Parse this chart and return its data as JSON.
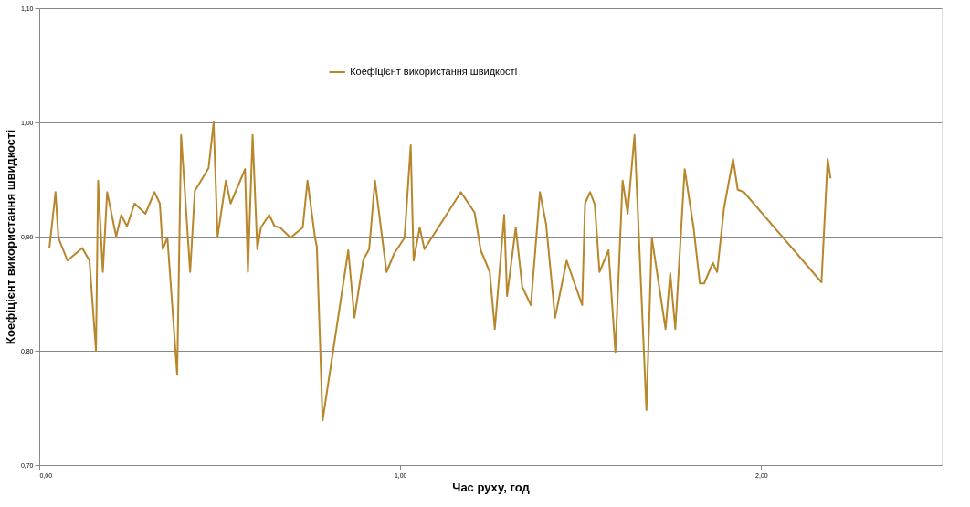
{
  "chart_data": {
    "type": "line",
    "xlabel": "Час руху, год",
    "ylabel": "Коефіцієнт використання швидкості",
    "xlim": [
      0,
      2.5
    ],
    "xticks": [
      {
        "value": 0,
        "label": "0,00"
      },
      {
        "value": 1,
        "label": "1,00"
      },
      {
        "value": 2,
        "label": "2,00"
      }
    ],
    "ylim": [
      0.7,
      1.1
    ],
    "yticks": [
      {
        "value": 0.7,
        "label": "0,70"
      },
      {
        "value": 0.8,
        "label": "0,80"
      },
      {
        "value": 0.9,
        "label": "0,90"
      },
      {
        "value": 1.0,
        "label": "1,00"
      },
      {
        "value": 1.1,
        "label": "1,10"
      }
    ],
    "grid": "y",
    "legend": "top",
    "marker": "none",
    "line_style": "solid",
    "x": [
      0.028,
      0.045,
      0.053,
      0.078,
      0.119,
      0.139,
      0.157,
      0.163,
      0.176,
      0.188,
      0.213,
      0.227,
      0.243,
      0.264,
      0.294,
      0.319,
      0.334,
      0.342,
      0.355,
      0.382,
      0.393,
      0.418,
      0.431,
      0.469,
      0.483,
      0.494,
      0.517,
      0.53,
      0.57,
      0.578,
      0.591,
      0.604,
      0.614,
      0.637,
      0.652,
      0.667,
      0.696,
      0.73,
      0.743,
      0.764,
      0.769,
      0.785,
      0.856,
      0.873,
      0.898,
      0.914,
      0.93,
      0.962,
      0.983,
      1.012,
      1.029,
      1.037,
      1.054,
      1.067,
      1.168,
      1.206,
      1.223,
      1.248,
      1.262,
      1.288,
      1.296,
      1.32,
      1.338,
      1.362,
      1.387,
      1.404,
      1.429,
      1.461,
      1.504,
      1.512,
      1.526,
      1.539,
      1.552,
      1.577,
      1.596,
      1.616,
      1.63,
      1.649,
      1.682,
      1.697,
      1.735,
      1.748,
      1.762,
      1.788,
      1.813,
      1.83,
      1.842,
      1.866,
      1.878,
      1.897,
      1.922,
      1.935,
      1.952,
      2.167,
      2.184,
      2.192
    ],
    "series": [
      {
        "name": "Коефіцієнт використання швидкості",
        "color": "#b8862b",
        "values": [
          0.89,
          0.939,
          0.899,
          0.879,
          0.89,
          0.879,
          0.8,
          0.949,
          0.869,
          0.939,
          0.9,
          0.919,
          0.909,
          0.929,
          0.92,
          0.939,
          0.929,
          0.889,
          0.899,
          0.779,
          0.989,
          0.869,
          0.94,
          0.96,
          1.0,
          0.9,
          0.949,
          0.929,
          0.959,
          0.869,
          0.989,
          0.889,
          0.908,
          0.919,
          0.909,
          0.908,
          0.899,
          0.908,
          0.949,
          0.899,
          0.891,
          0.739,
          0.888,
          0.829,
          0.88,
          0.889,
          0.949,
          0.869,
          0.885,
          0.899,
          0.98,
          0.879,
          0.908,
          0.889,
          0.939,
          0.921,
          0.888,
          0.869,
          0.819,
          0.919,
          0.848,
          0.908,
          0.856,
          0.84,
          0.939,
          0.911,
          0.829,
          0.879,
          0.84,
          0.929,
          0.939,
          0.928,
          0.869,
          0.888,
          0.799,
          0.949,
          0.92,
          0.989,
          0.748,
          0.899,
          0.819,
          0.868,
          0.819,
          0.959,
          0.907,
          0.859,
          0.859,
          0.877,
          0.869,
          0.925,
          0.968,
          0.941,
          0.939,
          0.86,
          0.968,
          0.951
        ]
      }
    ]
  }
}
